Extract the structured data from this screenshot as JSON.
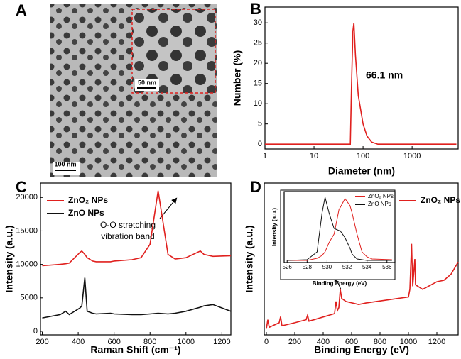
{
  "chart_data": [
    {
      "type": "image",
      "panel": "A",
      "scale_bars": [
        "100 nm",
        "50 nm"
      ]
    },
    {
      "type": "line",
      "panel": "B",
      "xscale": "log",
      "xlabel": "Diameter (nm)",
      "ylabel": "Number (%)",
      "annotation": "66.1 nm",
      "x": [
        1,
        10,
        50,
        55,
        58,
        62,
        65,
        70,
        80,
        100,
        120,
        150,
        200,
        1000,
        8000
      ],
      "series": [
        {
          "name": null,
          "color": "#e0201e",
          "values": [
            0,
            0,
            0,
            0,
            14,
            28,
            30,
            22,
            12,
            5,
            2,
            0.5,
            0,
            0,
            0
          ]
        }
      ],
      "xlim": [
        1,
        8700
      ],
      "xticks": [
        1,
        10,
        100,
        1000
      ],
      "ylim": [
        -1.2,
        33.9
      ],
      "yticks": [
        0,
        5,
        10,
        15,
        20,
        25,
        30
      ]
    },
    {
      "type": "line",
      "panel": "C",
      "xlabel": "Raman Shift (cm⁻¹)",
      "ylabel": "Intensity (a.u.)",
      "annotation": [
        "O-O stretching",
        "vibration band"
      ],
      "x": [
        200,
        300,
        330,
        350,
        410,
        420,
        437,
        450,
        480,
        500,
        580,
        600,
        700,
        750,
        800,
        845,
        900,
        940,
        1000,
        1080,
        1100,
        1150,
        1250
      ],
      "series": [
        {
          "name": "ZnO₂ NPs",
          "color": "#e0201e",
          "values": [
            9800,
            10000,
            10100,
            10200,
            11800,
            12000,
            11500,
            11000,
            10500,
            10400,
            10400,
            10500,
            10700,
            11000,
            13000,
            21000,
            11500,
            10800,
            11000,
            12000,
            11500,
            11200,
            11300
          ]
        },
        {
          "name": "ZnO NPs",
          "color": "#111111",
          "values": [
            2000,
            2500,
            3000,
            2500,
            3500,
            3800,
            8000,
            3000,
            2700,
            2600,
            2700,
            2600,
            2500,
            2500,
            2600,
            2700,
            2600,
            2700,
            3000,
            3600,
            3800,
            4000,
            3000
          ]
        }
      ],
      "xlim": [
        190,
        1250
      ],
      "xticks": [
        200,
        400,
        600,
        800,
        1000,
        1200
      ],
      "ylim": [
        -530,
        22150
      ],
      "yticks": [
        0,
        5000,
        10000,
        15000,
        20000
      ]
    },
    {
      "type": "line",
      "panel": "D",
      "xlabel": "Binding Energy (eV)",
      "ylabel": "Intensity (a.u.)",
      "x": [
        0,
        10,
        20,
        90,
        100,
        110,
        200,
        280,
        290,
        300,
        480,
        490,
        500,
        510,
        520,
        530,
        560,
        650,
        700,
        1000,
        1010,
        1022,
        1030,
        1045,
        1050,
        1100,
        1200,
        1250,
        1300,
        1350
      ],
      "series": [
        {
          "name": "ZnO₂ NPs",
          "color": "#e0201e",
          "values": [
            4,
            10,
            5,
            8,
            12,
            6,
            8,
            10,
            13,
            9,
            14,
            22,
            16,
            18,
            30,
            24,
            22,
            20,
            21,
            25,
            30,
            60,
            32,
            50,
            33,
            30,
            35,
            36,
            40,
            48
          ]
        }
      ],
      "xlim": [
        -15,
        1350
      ],
      "xticks": [
        0,
        200,
        400,
        600,
        800,
        1000,
        1200
      ],
      "ylim": [
        0,
        100
      ]
    },
    {
      "type": "line",
      "xlabel": "Binding Energy (eV)",
      "ylabel": "Intensity (a.u.)",
      "x": [
        526,
        528,
        529,
        529.5,
        529.8,
        530.2,
        530.7,
        531.2,
        531.3,
        531.8,
        532.3,
        532.5,
        533,
        533.5,
        534,
        534.5,
        536.5
      ],
      "series": [
        {
          "name": "ZnO₂ NPs",
          "color": "#e0201e",
          "values": [
            3,
            3,
            6,
            10,
            15,
            28,
            40,
            75,
            77,
            90,
            80,
            70,
            40,
            15,
            8,
            5,
            4
          ]
        },
        {
          "name": "ZnO NPs",
          "color": "#111111",
          "values": [
            3,
            4,
            15,
            70,
            92,
            70,
            48,
            45,
            45,
            35,
            20,
            12,
            5,
            4,
            3,
            3,
            3
          ]
        }
      ],
      "xlim": [
        525.7,
        536.8
      ],
      "xticks": [
        526,
        528,
        530,
        532,
        534,
        536
      ],
      "ylim": [
        0,
        100
      ]
    }
  ]
}
